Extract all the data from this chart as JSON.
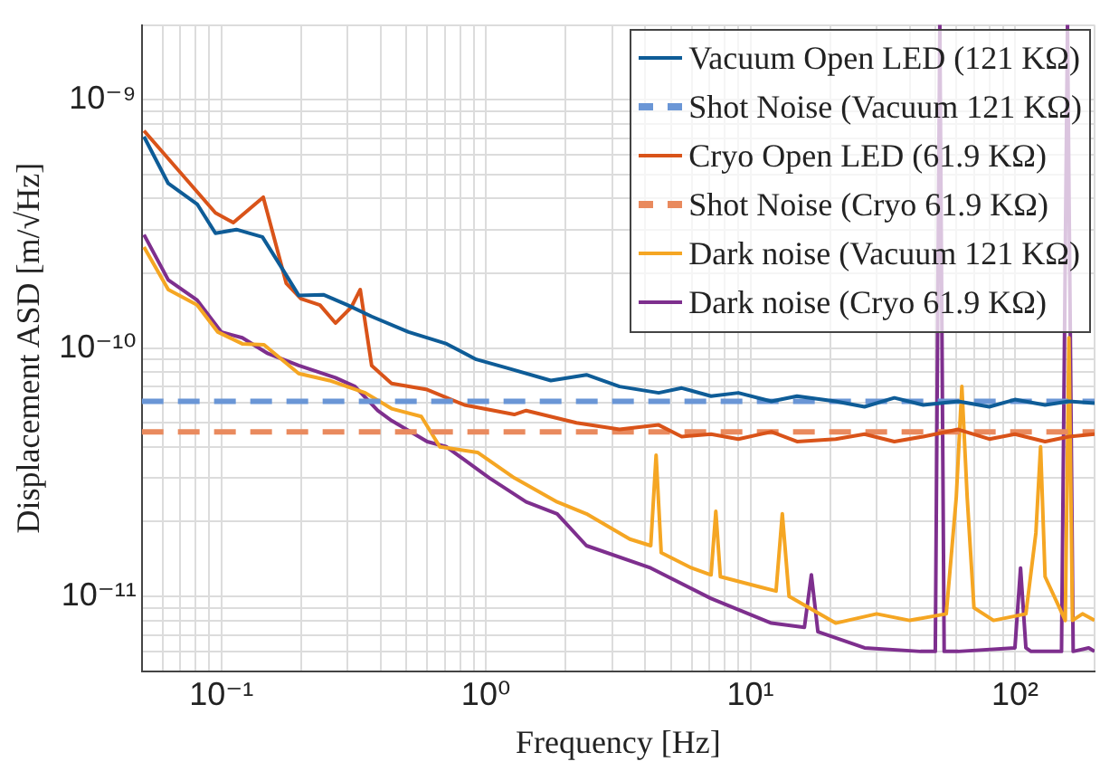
{
  "chart_data": {
    "type": "line",
    "xlabel": "Frequency [Hz]",
    "ylabel": "Displacement ASD [m/√Hz]",
    "log": "xy",
    "grid": true,
    "legend": "top right",
    "xlim": [
      0.05,
      200
    ],
    "ylim": [
      5e-12,
      2e-09
    ],
    "xticks": [
      {
        "value": 0.06,
        "label": null
      },
      {
        "value": 0.07,
        "label": null
      },
      {
        "value": 0.08,
        "label": null
      },
      {
        "value": 0.09,
        "label": null
      },
      {
        "value": 0.1,
        "label": "10⁻¹"
      },
      {
        "value": 0.2,
        "label": null
      },
      {
        "value": 0.3,
        "label": null
      },
      {
        "value": 0.4,
        "label": null
      },
      {
        "value": 0.5,
        "label": null
      },
      {
        "value": 0.6,
        "label": null
      },
      {
        "value": 0.7,
        "label": null
      },
      {
        "value": 0.8,
        "label": null
      },
      {
        "value": 0.9,
        "label": null
      },
      {
        "value": 1,
        "label": "10⁰"
      },
      {
        "value": 2,
        "label": null
      },
      {
        "value": 3,
        "label": null
      },
      {
        "value": 4,
        "label": null
      },
      {
        "value": 5,
        "label": null
      },
      {
        "value": 6,
        "label": null
      },
      {
        "value": 7,
        "label": null
      },
      {
        "value": 8,
        "label": null
      },
      {
        "value": 9,
        "label": null
      },
      {
        "value": 10,
        "label": "10¹"
      },
      {
        "value": 20,
        "label": null
      },
      {
        "value": 30,
        "label": null
      },
      {
        "value": 40,
        "label": null
      },
      {
        "value": 50,
        "label": null
      },
      {
        "value": 60,
        "label": null
      },
      {
        "value": 70,
        "label": null
      },
      {
        "value": 80,
        "label": null
      },
      {
        "value": 90,
        "label": null
      },
      {
        "value": 100,
        "label": "10²"
      },
      {
        "value": 200,
        "label": null
      }
    ],
    "yticks": [
      {
        "value": 6e-12,
        "label": null
      },
      {
        "value": 7e-12,
        "label": null
      },
      {
        "value": 8e-12,
        "label": null
      },
      {
        "value": 9e-12,
        "label": null
      },
      {
        "value": 1e-11,
        "label": "10⁻¹¹"
      },
      {
        "value": 2e-11,
        "label": null
      },
      {
        "value": 3e-11,
        "label": null
      },
      {
        "value": 4e-11,
        "label": null
      },
      {
        "value": 5e-11,
        "label": null
      },
      {
        "value": 6e-11,
        "label": null
      },
      {
        "value": 7e-11,
        "label": null
      },
      {
        "value": 8e-11,
        "label": null
      },
      {
        "value": 9e-11,
        "label": null
      },
      {
        "value": 1e-10,
        "label": "10⁻¹⁰"
      },
      {
        "value": 2e-10,
        "label": null
      },
      {
        "value": 3e-10,
        "label": null
      },
      {
        "value": 4e-10,
        "label": null
      },
      {
        "value": 5e-10,
        "label": null
      },
      {
        "value": 6e-10,
        "label": null
      },
      {
        "value": 7e-10,
        "label": null
      },
      {
        "value": 8e-10,
        "label": null
      },
      {
        "value": 9e-10,
        "label": null
      },
      {
        "value": 1e-09,
        "label": "10⁻⁹"
      },
      {
        "value": 2e-09,
        "label": null
      }
    ],
    "series": [
      {
        "name": "Vacuum Open LED (121 KΩ)",
        "color": "#0e5c97",
        "x": [
          0.051,
          0.063,
          0.081,
          0.095,
          0.114,
          0.143,
          0.167,
          0.196,
          0.243,
          0.3,
          0.37,
          0.51,
          0.71,
          0.92,
          1.21,
          1.76,
          2.4,
          3.2,
          4.5,
          5.5,
          7.1,
          9,
          12,
          15,
          21,
          27,
          35,
          45,
          61,
          80,
          100,
          130,
          160,
          200
        ],
        "values": [
          7.1e-10,
          4.6e-10,
          3.8e-10,
          2.9e-10,
          3e-10,
          2.8e-10,
          2.15e-10,
          1.63e-10,
          1.64e-10,
          1.49e-10,
          1.34e-10,
          1.16e-10,
          1.04e-10,
          9e-11,
          8.3e-11,
          7.4e-11,
          7.8e-11,
          7e-11,
          6.6e-11,
          6.9e-11,
          6.4e-11,
          6.6e-11,
          6.1e-11,
          6.4e-11,
          6.1e-11,
          5.8e-11,
          6.3e-11,
          5.9e-11,
          6.1e-11,
          5.8e-11,
          6.2e-11,
          5.9e-11,
          6.1e-11,
          6e-11
        ]
      },
      {
        "name": "Shot Noise (Vacuum 121 KΩ)",
        "color": "#6a96d6",
        "line_style": "dashed",
        "x": [
          0.05,
          200
        ],
        "values": [
          6.1e-11,
          6.1e-11
        ]
      },
      {
        "name": "Cryo Open LED (61.9 KΩ)",
        "color": "#d95319",
        "x": [
          0.051,
          0.095,
          0.111,
          0.144,
          0.176,
          0.2,
          0.236,
          0.27,
          0.31,
          0.335,
          0.37,
          0.44,
          0.6,
          0.83,
          1.28,
          1.42,
          2.2,
          3.2,
          4.5,
          5.5,
          7.1,
          9,
          12,
          15,
          21,
          27,
          35,
          45,
          61,
          80,
          100,
          130,
          160,
          200
        ],
        "values": [
          7.5e-10,
          3.5e-10,
          3.2e-10,
          4.05e-10,
          1.82e-10,
          1.58e-10,
          1.49e-10,
          1.26e-10,
          1.46e-10,
          1.72e-10,
          8.5e-11,
          7.2e-11,
          6.8e-11,
          5.9e-11,
          5.4e-11,
          5.6e-11,
          5e-11,
          4.7e-11,
          4.9e-11,
          4.4e-11,
          4.5e-11,
          4.3e-11,
          4.6e-11,
          4.2e-11,
          4.3e-11,
          4.5e-11,
          4.2e-11,
          4.4e-11,
          4.7e-11,
          4.3e-11,
          4.5e-11,
          4.2e-11,
          4.4e-11,
          4.5e-11
        ]
      },
      {
        "name": "Shot Noise (Cryo 61.9 KΩ)",
        "color": "#e98a5e",
        "line_style": "dashed",
        "x": [
          0.05,
          200
        ],
        "values": [
          4.6e-11,
          4.6e-11
        ]
      },
      {
        "name": "Dark noise (Vacuum 121 KΩ)",
        "color": "#f5a623",
        "x": [
          0.051,
          0.063,
          0.081,
          0.097,
          0.12,
          0.145,
          0.196,
          0.256,
          0.35,
          0.44,
          0.57,
          0.67,
          0.93,
          1.28,
          1.86,
          2.4,
          3.5,
          4.2,
          4.4,
          4.6,
          6,
          7.1,
          7.4,
          7.7,
          10.9,
          12.5,
          13.2,
          14,
          21,
          30,
          40,
          55,
          60,
          63,
          66,
          70,
          83,
          110,
          120,
          125,
          130,
          155,
          160,
          165,
          180,
          200
        ],
        "values": [
          2.55e-10,
          1.72e-10,
          1.49e-10,
          1.16e-10,
          1.04e-10,
          1.03e-10,
          7.9e-11,
          7.4e-11,
          6.6e-11,
          5.7e-11,
          5.3e-11,
          4e-11,
          3.8e-11,
          3e-11,
          2.4e-11,
          2.15e-11,
          1.7e-11,
          1.6e-11,
          3.7e-11,
          1.5e-11,
          1.3e-11,
          1.22e-11,
          2.2e-11,
          1.2e-11,
          1.09e-11,
          1.05e-11,
          2.15e-11,
          1e-11,
          7.8e-12,
          8.5e-12,
          8e-12,
          8.5e-12,
          2.5e-11,
          7e-11,
          2.5e-11,
          9e-12,
          8e-12,
          8.5e-12,
          1.8e-11,
          4e-11,
          1.2e-11,
          8e-12,
          1.1e-10,
          8e-12,
          8.5e-12,
          8e-12
        ]
      },
      {
        "name": "Dark noise (Cryo 61.9 KΩ)",
        "color": "#7e2f8e",
        "x": [
          0.051,
          0.063,
          0.081,
          0.1,
          0.12,
          0.15,
          0.196,
          0.27,
          0.32,
          0.39,
          0.44,
          0.6,
          0.71,
          1.03,
          1.42,
          1.86,
          2.4,
          4.2,
          7.1,
          12,
          16,
          17,
          18,
          27,
          44,
          50,
          52,
          54,
          61,
          100,
          105,
          110,
          115,
          150,
          158,
          166,
          190,
          200
        ],
        "values": [
          2.86e-10,
          1.88e-10,
          1.56e-10,
          1.16e-10,
          1.1e-10,
          9.5e-11,
          8.5e-11,
          7.6e-11,
          7e-11,
          5.6e-11,
          5.1e-11,
          4.2e-11,
          4e-11,
          3e-11,
          2.4e-11,
          2.15e-11,
          1.6e-11,
          1.3e-11,
          9.8e-12,
          7.8e-12,
          7.5e-12,
          1.22e-11,
          7.2e-12,
          6.2e-12,
          6e-12,
          6e-12,
          2e-09,
          6e-12,
          6e-12,
          6.2e-12,
          1.3e-11,
          6.2e-12,
          6e-12,
          6e-12,
          2e-09,
          6e-12,
          6.2e-12,
          6e-12
        ]
      }
    ]
  }
}
